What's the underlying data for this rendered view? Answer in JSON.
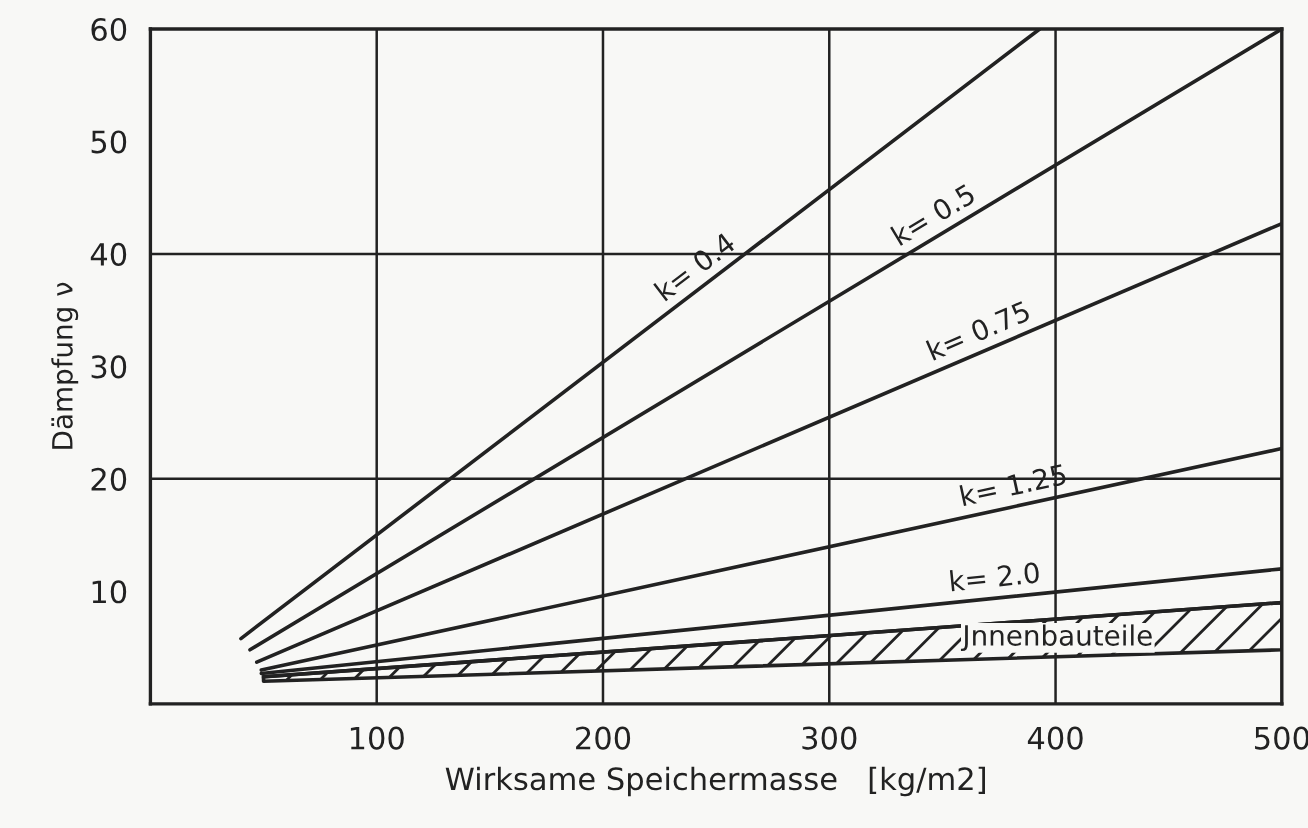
{
  "chart_data": {
    "type": "line",
    "xlabel": "Wirksame Speichermasse   [kg/m2]",
    "ylabel": "Dämpfung ν",
    "xlim": [
      0,
      500
    ],
    "ylim": [
      0,
      60
    ],
    "xticks": [
      100,
      200,
      300,
      400,
      500
    ],
    "yticks": [
      10,
      20,
      30,
      40,
      50,
      60
    ],
    "grid": "x",
    "ref_lines": [
      {
        "axis": "y",
        "value": 20,
        "color": "#222222"
      },
      {
        "axis": "y",
        "value": 40,
        "color": "#222222"
      }
    ],
    "series": [
      {
        "name": "k= 0.4",
        "color": "#222222",
        "x": [
          40,
          393
        ],
        "values": [
          5.8,
          60
        ]
      },
      {
        "name": "k= 0.5",
        "color": "#222222",
        "x": [
          44,
          500
        ],
        "values": [
          4.8,
          60
        ]
      },
      {
        "name": "k= 0.75",
        "color": "#222222",
        "x": [
          47,
          500
        ],
        "values": [
          3.7,
          42.7
        ]
      },
      {
        "name": "k= 1.25",
        "color": "#222222",
        "x": [
          49,
          500
        ],
        "values": [
          3.0,
          22.7
        ]
      },
      {
        "name": "k= 2.0",
        "color": "#222222",
        "x": [
          49,
          500
        ],
        "values": [
          2.7,
          12
        ]
      },
      {
        "name": "Jnnenbauteile",
        "color": "#222222",
        "x": [
          50,
          500
        ],
        "values": [
          2.4,
          9.0
        ],
        "lower": [
          2.0,
          4.8
        ],
        "upper": [
          2.4,
          9.0
        ]
      }
    ]
  }
}
